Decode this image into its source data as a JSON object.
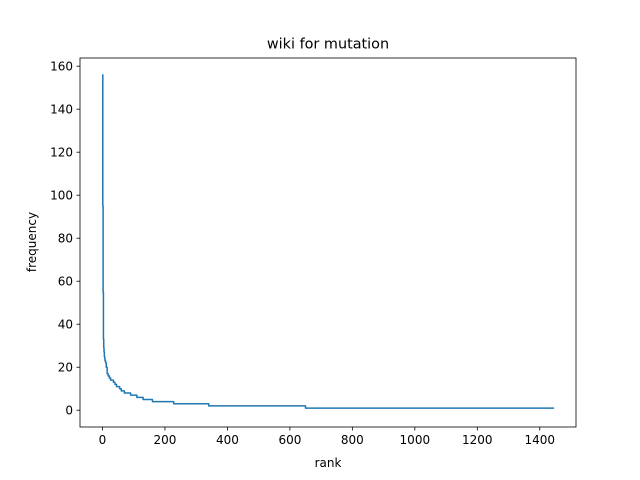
{
  "chart_data": {
    "type": "line",
    "title": "wiki  for mutation",
    "xlabel": "rank",
    "ylabel": "frequency",
    "xlim": [
      -72,
      1516
    ],
    "ylim": [
      -7.8,
      163.8
    ],
    "xticks": [
      0,
      200,
      400,
      600,
      800,
      1000,
      1200,
      1400
    ],
    "yticks": [
      0,
      20,
      40,
      60,
      80,
      100,
      120,
      140,
      160
    ],
    "grid": false,
    "legend": "none",
    "series": [
      {
        "color": "#1f77b4",
        "x": [
          0,
          1,
          2,
          3,
          4,
          5,
          6,
          7,
          8,
          10,
          12,
          15,
          18,
          22,
          26,
          30,
          35,
          40,
          45,
          50,
          55,
          60,
          65,
          70,
          80,
          90,
          100,
          110,
          120,
          130,
          150,
          160,
          180,
          200,
          228,
          260,
          300,
          340,
          400,
          450,
          500,
          550,
          598,
          650,
          700,
          800,
          900,
          1000,
          1100,
          1200,
          1300,
          1446
        ],
        "y": [
          156,
          95,
          55,
          33,
          29,
          27,
          25,
          24,
          23,
          22,
          20,
          17,
          16,
          15,
          14,
          14,
          13,
          12,
          11,
          11,
          10,
          9,
          9,
          8,
          8,
          7,
          7,
          6,
          6,
          5,
          5,
          4,
          4,
          4,
          3,
          3,
          3,
          2,
          2,
          2,
          2,
          2,
          2,
          1,
          1,
          1,
          1,
          1,
          1,
          1,
          1,
          1
        ]
      }
    ]
  }
}
